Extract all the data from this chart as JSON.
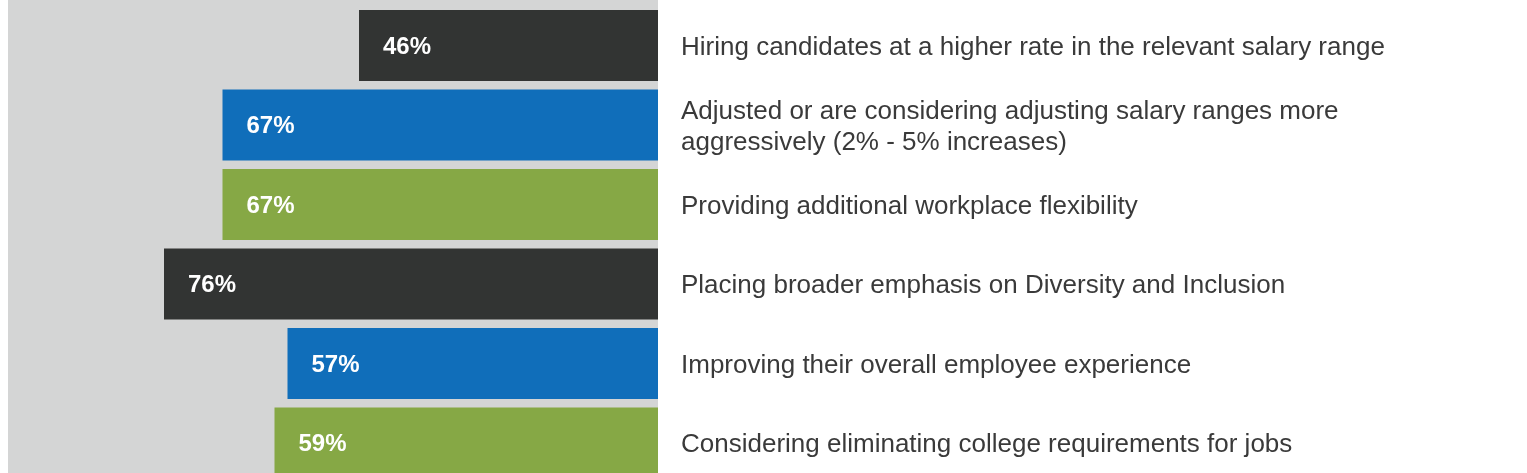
{
  "chart_data": {
    "type": "bar",
    "orientation": "horizontal",
    "categories": [
      "Hiring candidates at a higher rate in the relevant salary range",
      "Adjusted or are considering adjusting salary ranges more aggressively (2% - 5% increases)",
      "Providing additional workplace flexibility",
      "Placing broader emphasis on Diversity and Inclusion",
      "Improving their overall employee experience",
      "Considering eliminating college requirements for jobs"
    ],
    "values": [
      46,
      67,
      67,
      76,
      57,
      59
    ],
    "value_labels": [
      "46%",
      "67%",
      "67%",
      "76%",
      "57%",
      "59%"
    ],
    "colors": [
      "#323433",
      "#106eba",
      "#86a845",
      "#323433",
      "#106eba",
      "#86a845"
    ],
    "xlim": [
      100,
      0
    ]
  }
}
